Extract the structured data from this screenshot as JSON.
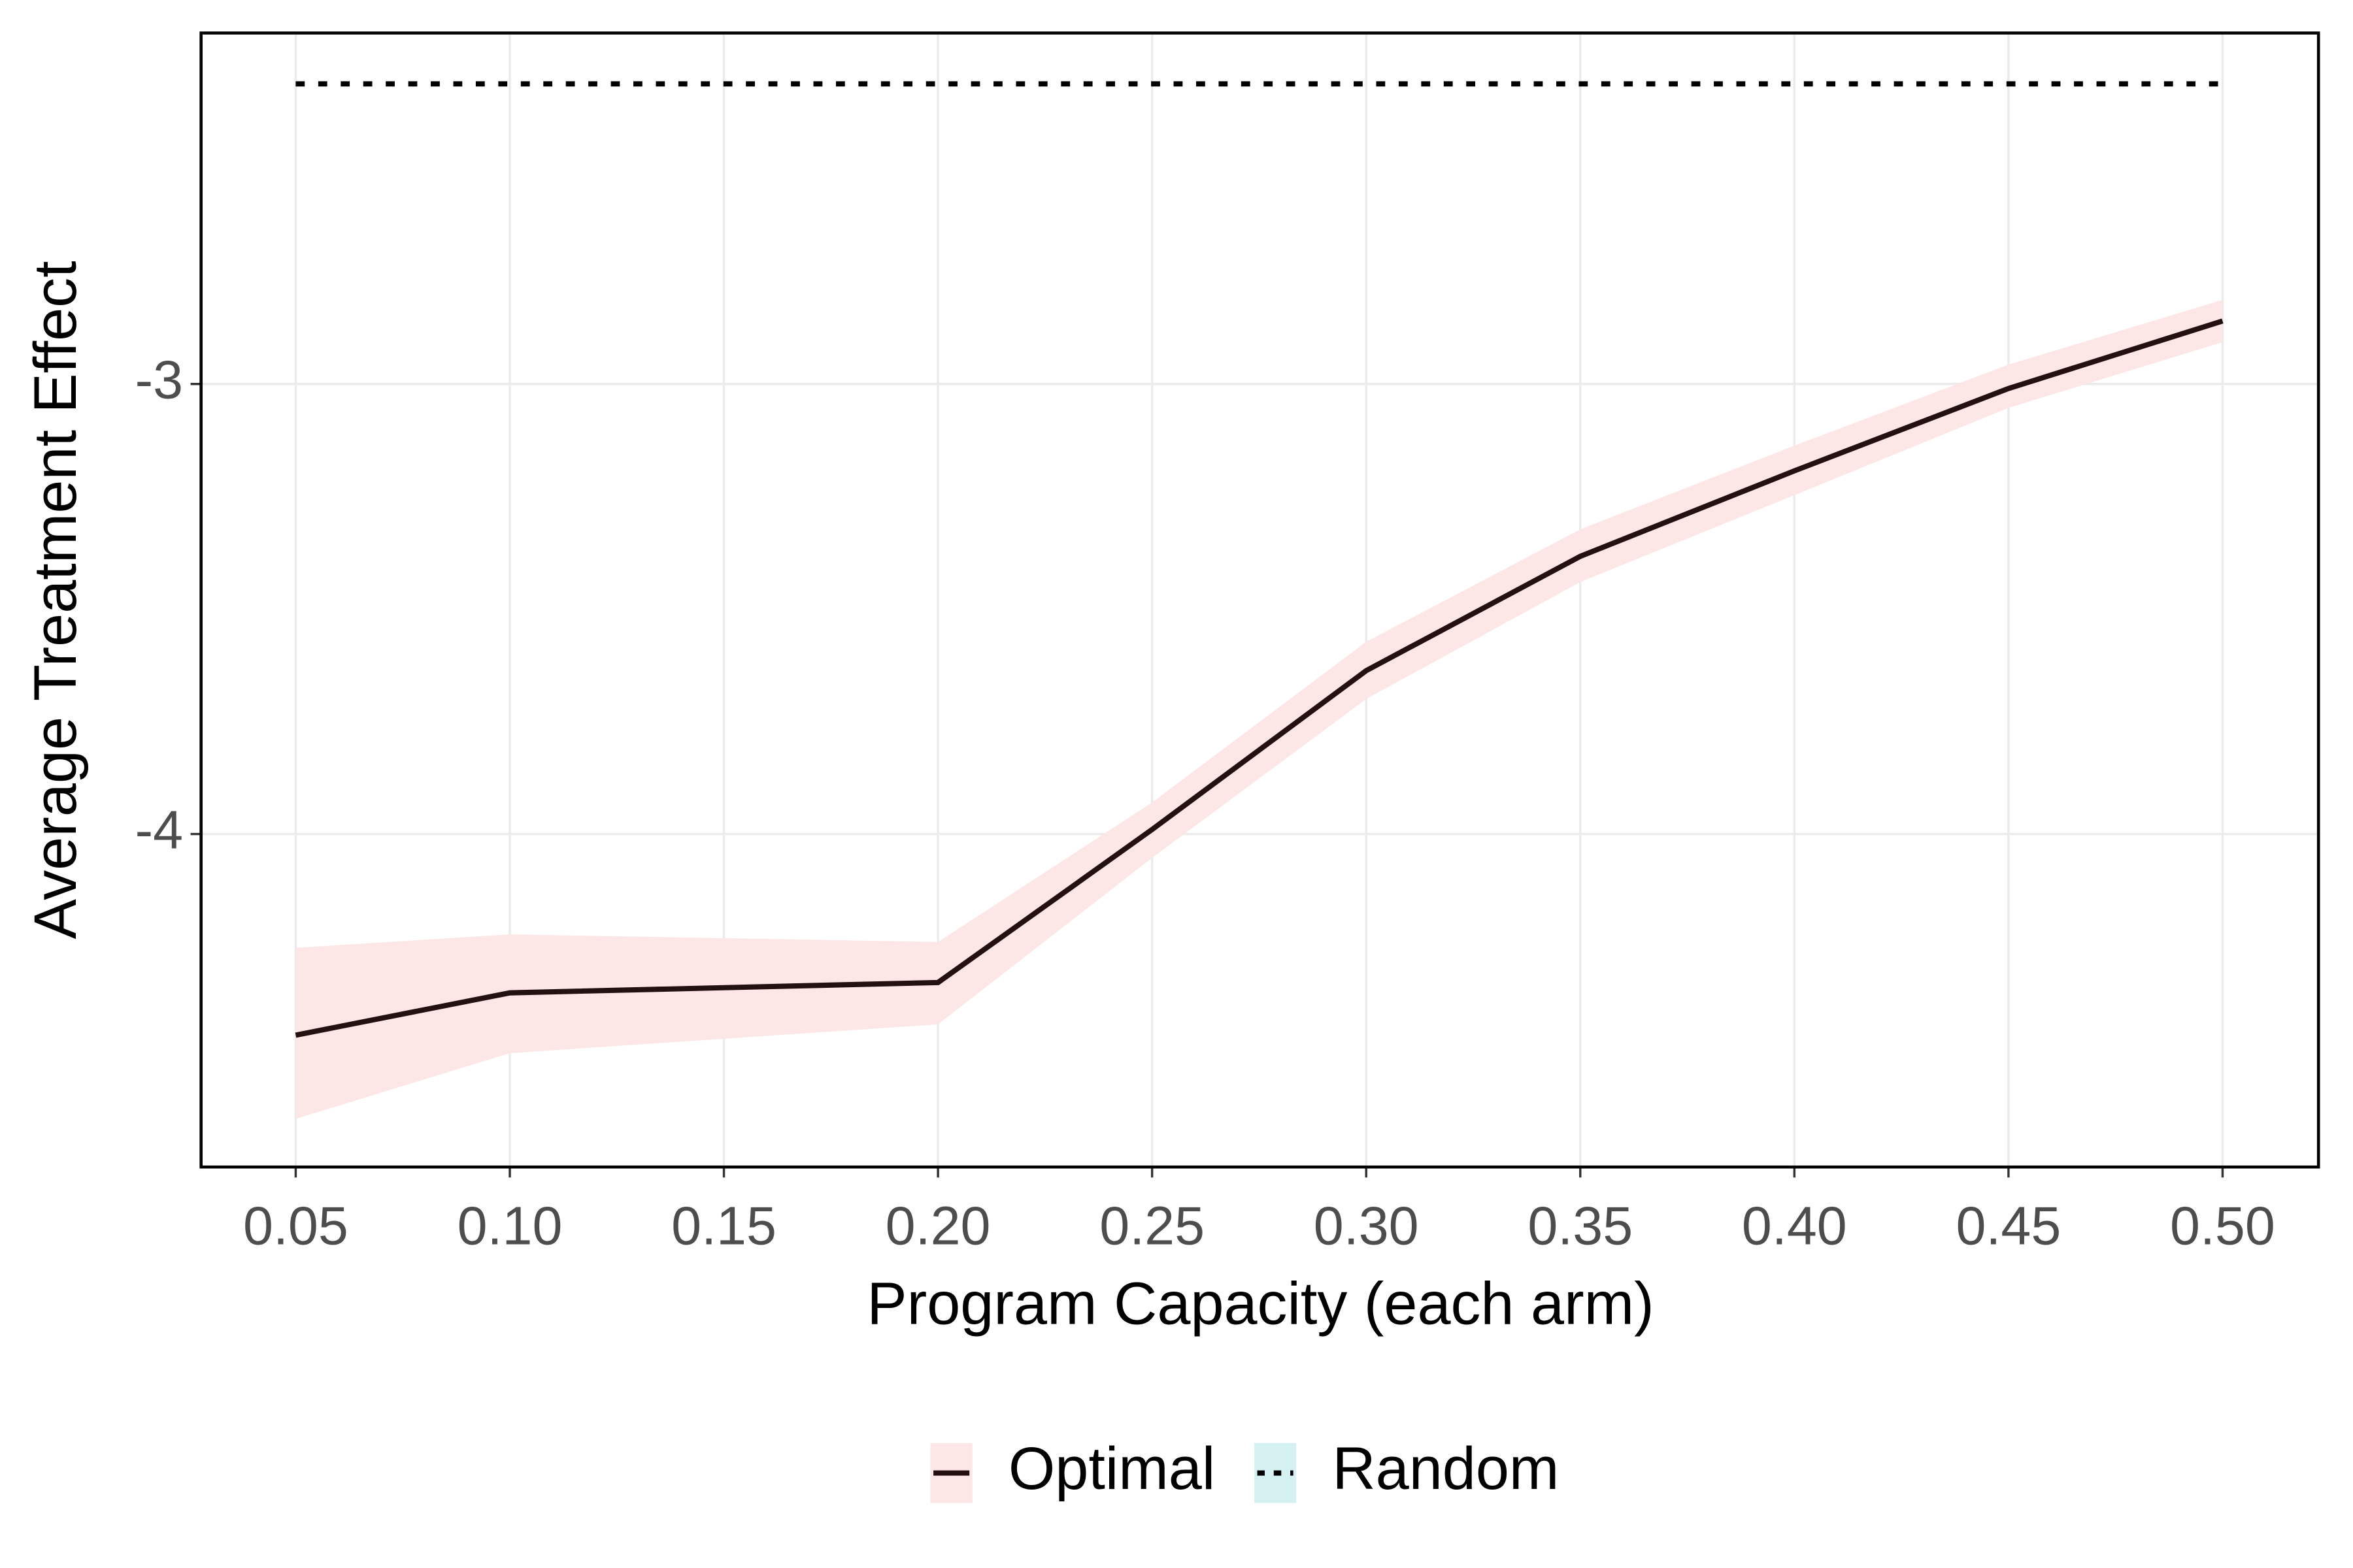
{
  "chart_data": {
    "type": "line",
    "x_label": "Program Capacity (each arm)",
    "y_label": "Average Treatment Effect",
    "x": [
      0.05,
      0.1,
      0.2,
      0.25,
      0.3,
      0.35,
      0.4,
      0.45,
      0.5
    ],
    "series": [
      {
        "name": "Optimal",
        "color": "#231010",
        "fill": "#fde6e6",
        "dash": "solid",
        "values": [
          -4.447,
          -4.353,
          -4.33,
          -3.99,
          -3.637,
          -3.383,
          -3.193,
          -3.01,
          -2.86
        ],
        "lower": [
          -4.633,
          -4.487,
          -4.423,
          -4.053,
          -3.7,
          -3.44,
          -3.247,
          -3.053,
          -2.907
        ],
        "upper": [
          -4.253,
          -4.223,
          -4.24,
          -3.93,
          -3.573,
          -3.323,
          -3.137,
          -2.957,
          -2.813
        ]
      },
      {
        "name": "Random",
        "color": "#000000",
        "fill": "#d6f1f1",
        "dash": "dotted",
        "values": [
          -2.333,
          -2.333,
          -2.333,
          -2.333,
          -2.333,
          -2.333,
          -2.333,
          -2.333,
          -2.333
        ]
      }
    ],
    "xlim": [
      0.0279,
      0.5224
    ],
    "ylim": [
      -4.74,
      -2.22
    ],
    "xticks": [
      0.05,
      {
        "value": 0.1,
        "label": "0.10"
      },
      0.15,
      {
        "value": 0.2,
        "label": "0.20"
      },
      0.25,
      {
        "value": 0.3,
        "label": "0.30"
      },
      0.35,
      {
        "value": 0.4,
        "label": "0.40"
      },
      0.45,
      {
        "value": 0.5,
        "label": "0.50"
      }
    ],
    "yticks": [
      -3,
      -4
    ],
    "grid": true,
    "legend": "bottom"
  }
}
